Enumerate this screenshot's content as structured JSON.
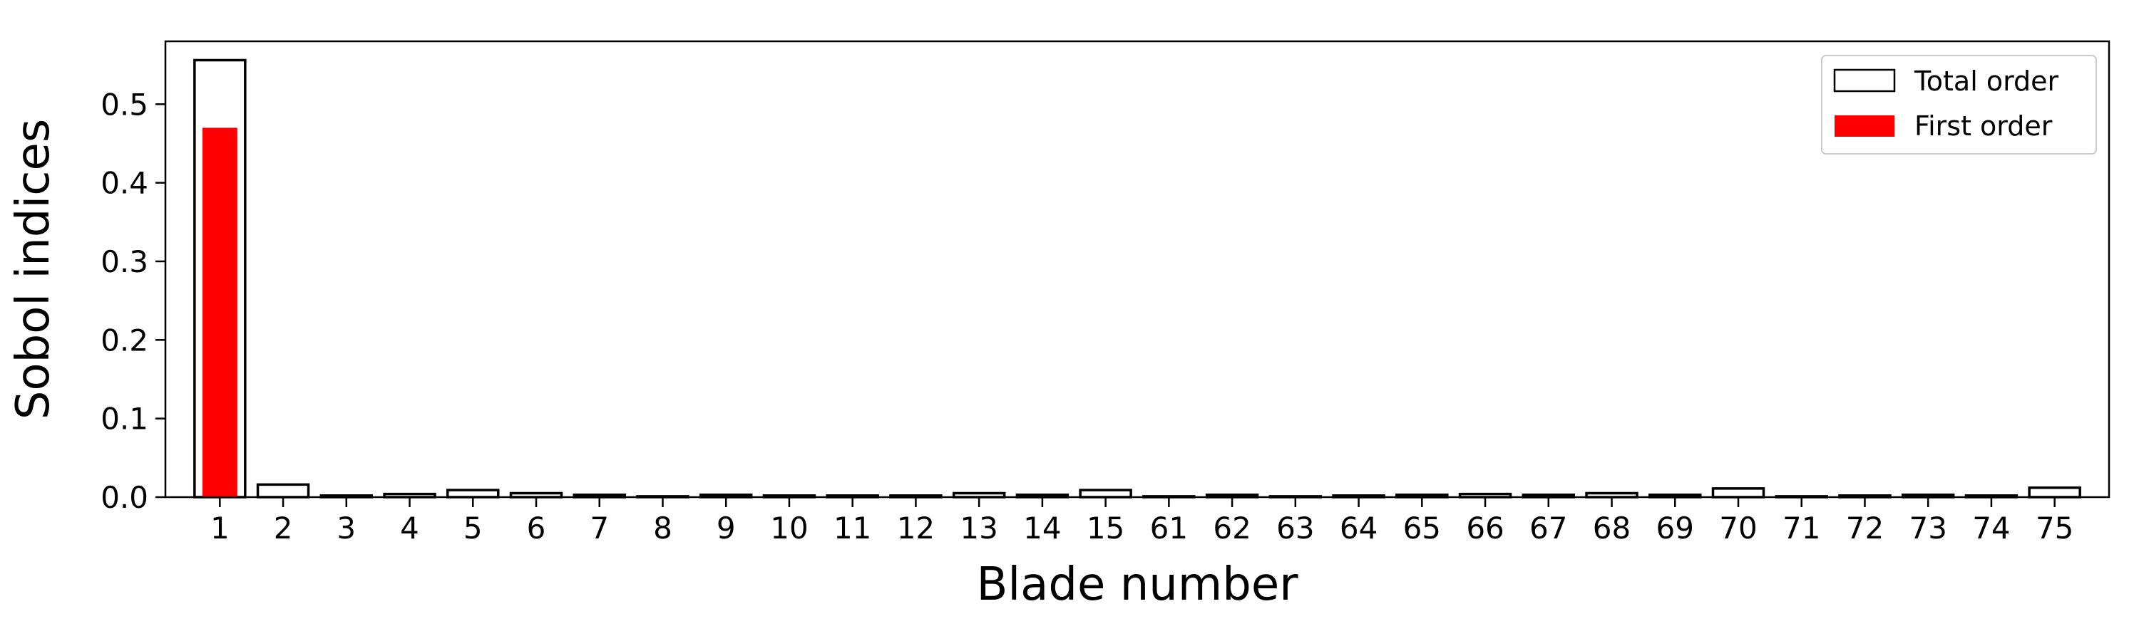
{
  "chart_data": {
    "type": "bar",
    "xlabel": "Blade number",
    "ylabel": "Sobol indices",
    "ylim": [
      0,
      0.58
    ],
    "yticks": [
      0.0,
      0.1,
      0.2,
      0.3,
      0.4,
      0.5
    ],
    "ytick_labels": [
      "0.0",
      "0.1",
      "0.2",
      "0.3",
      "0.4",
      "0.5"
    ],
    "grid": false,
    "legend_position": "top-right",
    "categories": [
      "1",
      "2",
      "3",
      "4",
      "5",
      "6",
      "7",
      "8",
      "9",
      "10",
      "11",
      "12",
      "13",
      "14",
      "15",
      "61",
      "62",
      "63",
      "64",
      "65",
      "66",
      "67",
      "68",
      "69",
      "70",
      "71",
      "72",
      "73",
      "74",
      "75"
    ],
    "series": [
      {
        "name": "Total order",
        "style": "outline",
        "color": "#000000",
        "values": [
          0.556,
          0.016,
          0.002,
          0.004,
          0.009,
          0.005,
          0.003,
          0.001,
          0.003,
          0.002,
          0.002,
          0.002,
          0.005,
          0.003,
          0.009,
          0.001,
          0.003,
          0.001,
          0.002,
          0.003,
          0.004,
          0.003,
          0.005,
          0.003,
          0.011,
          0.001,
          0.002,
          0.003,
          0.002,
          0.012
        ]
      },
      {
        "name": "First order",
        "style": "filled",
        "color": "#ff0000",
        "values": [
          0.47,
          0,
          0,
          0,
          0,
          0,
          0,
          0,
          0,
          0,
          0,
          0,
          0,
          0,
          0,
          0,
          0,
          0,
          0,
          0,
          0,
          0,
          0,
          0,
          0,
          0,
          0,
          0,
          0,
          0
        ]
      }
    ]
  }
}
